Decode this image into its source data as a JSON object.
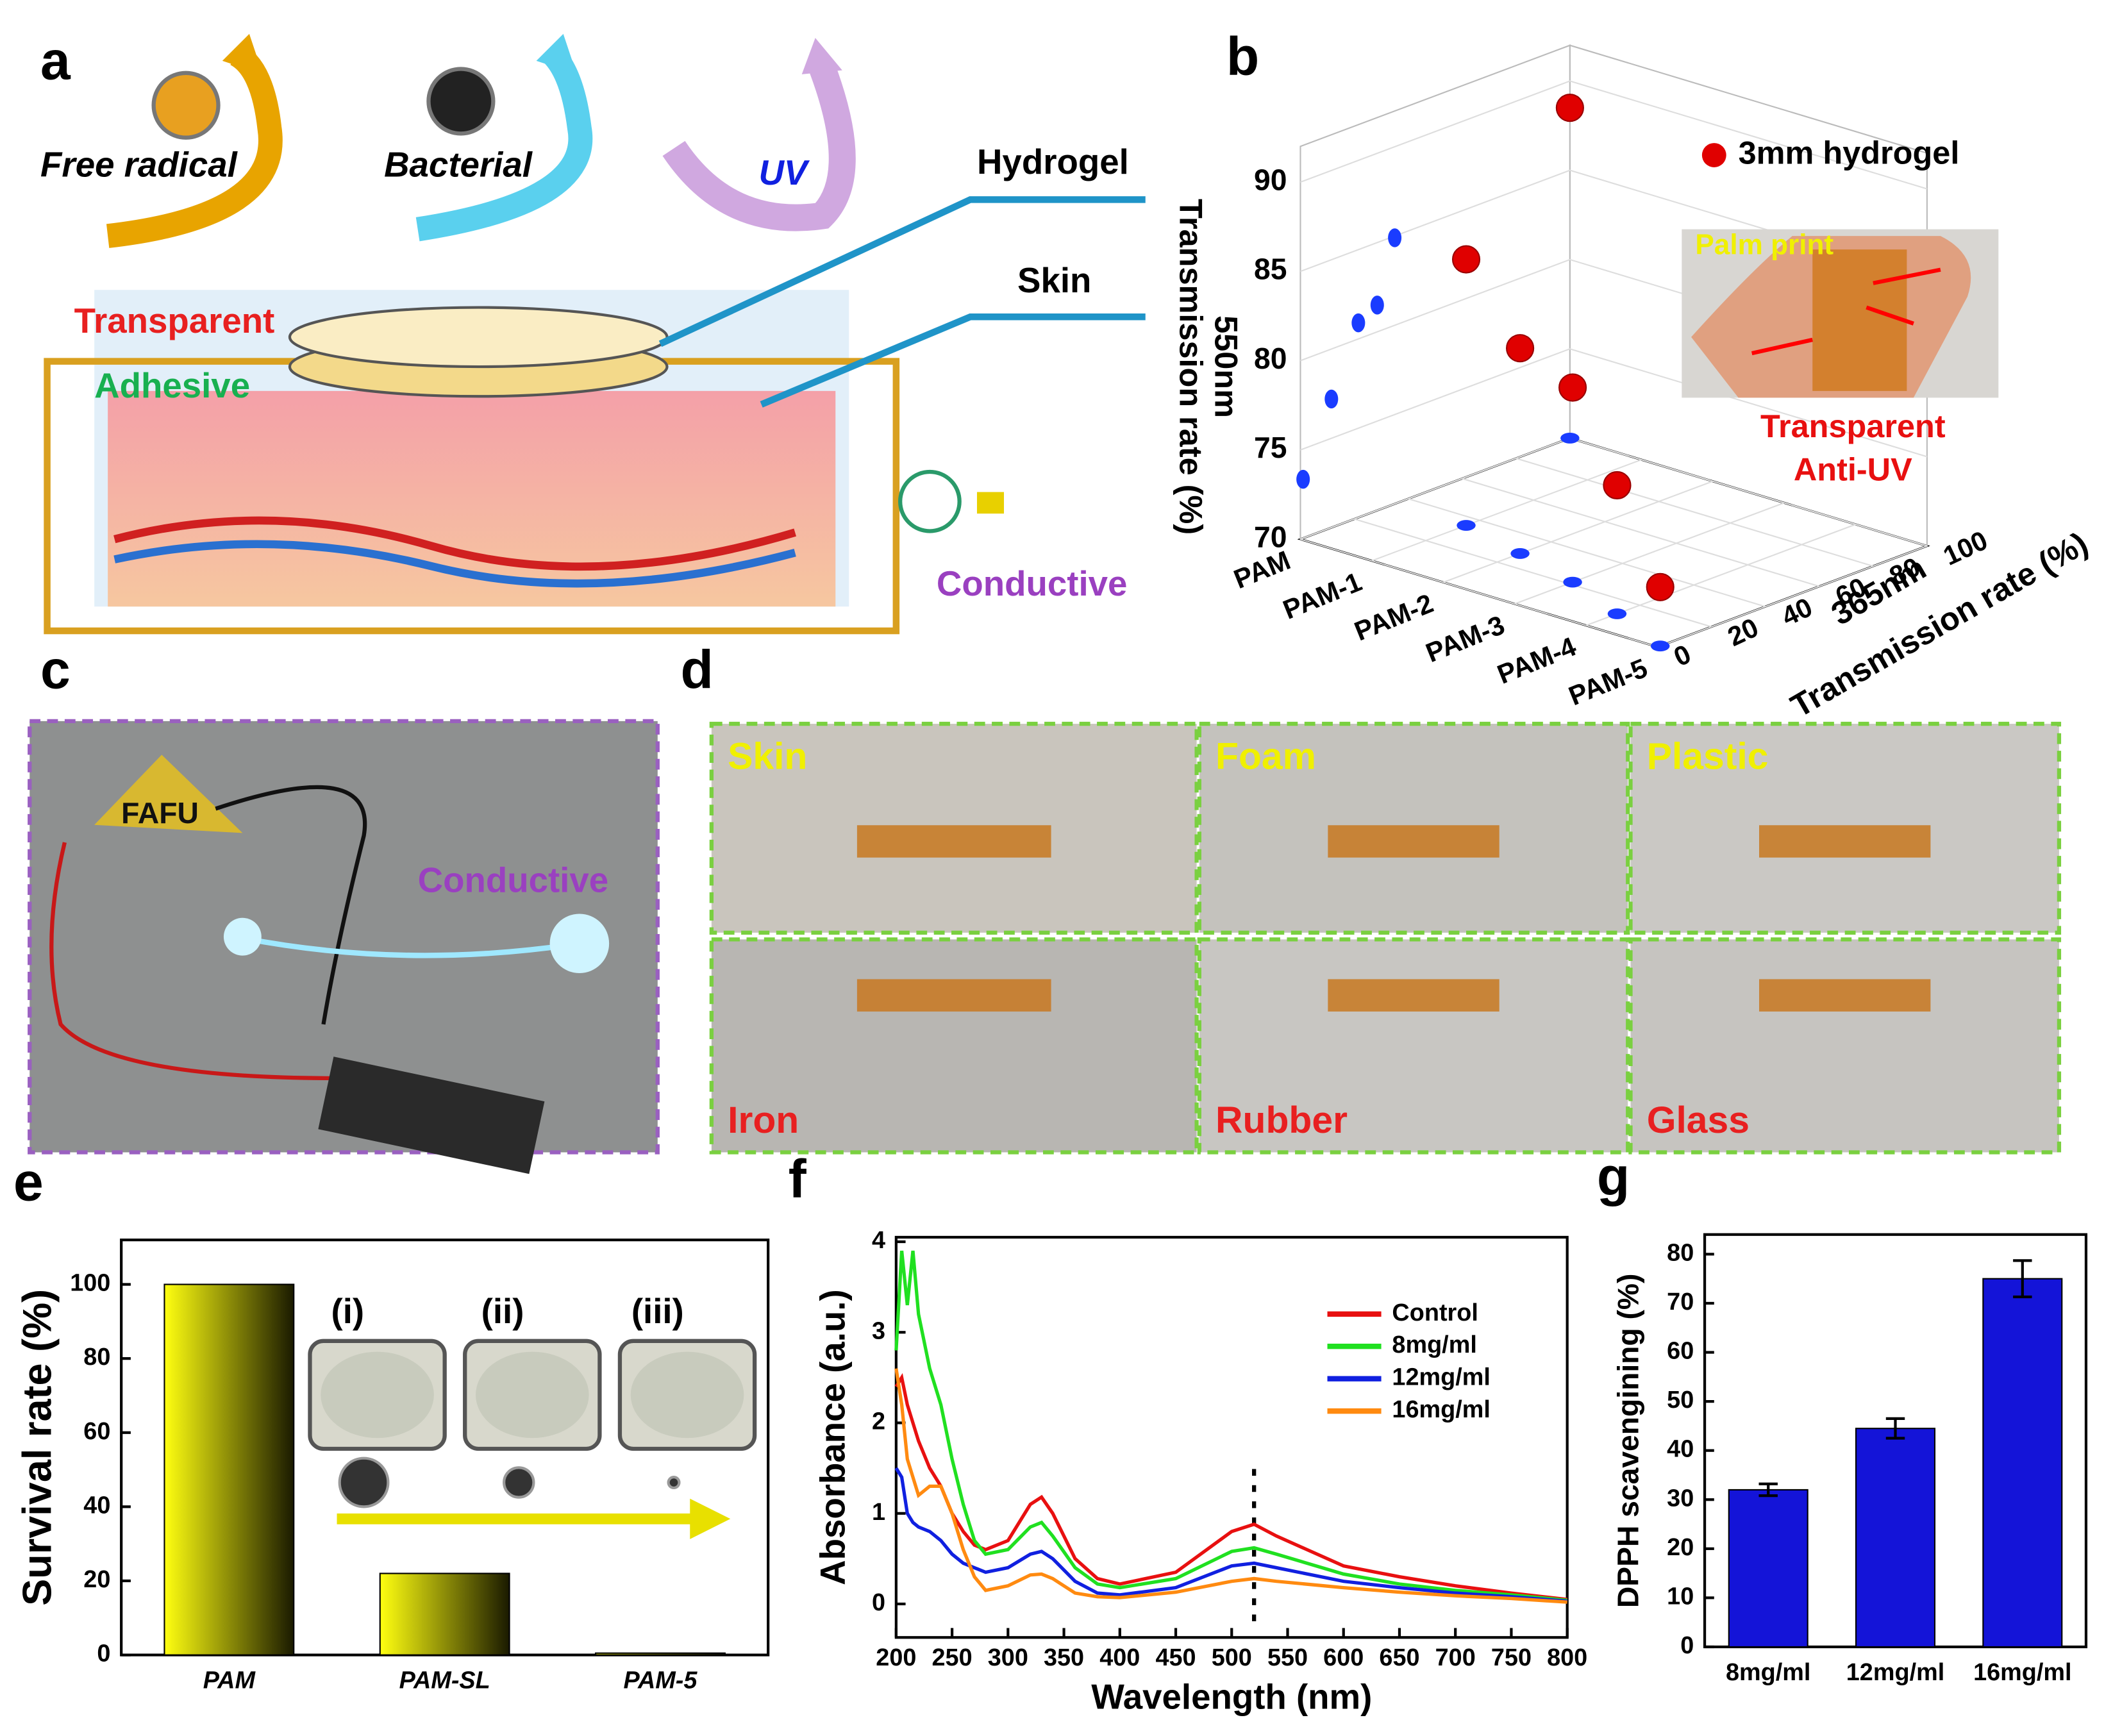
{
  "panel_a": {
    "label": "a",
    "free_radical": "Free radical",
    "bacterial": "Bacterial",
    "uv": "UV",
    "hydrogel": "Hydrogel",
    "skin": "Skin",
    "transparent": "Transparent",
    "adhesive": "Adhesive",
    "conductive": "Conductive"
  },
  "panel_c": {
    "label": "c",
    "conductive": "Conductive",
    "photo_text": "FAFU"
  },
  "panel_d": {
    "label": "d",
    "tiles": [
      "Skin",
      "Foam",
      "Plastic",
      "Iron",
      "Rubber",
      "Glass"
    ]
  },
  "chart_data": [
    {
      "type": "scatter3d",
      "label": "b",
      "categories": [
        "PAM",
        "PAM-1",
        "PAM-2",
        "PAM-3",
        "PAM-4",
        "PAM-5"
      ],
      "series": [
        {
          "name": "3mm hydrogel",
          "color": "#e00000",
          "y": [
            100,
            35,
            28.5,
            21.5,
            11.5,
            1
          ],
          "z": [
            88.5,
            84.9,
            81.5,
            80.9,
            77.2,
            73.3
          ]
        }
      ],
      "projection_color": "#1a3cff",
      "ylim": [
        0,
        100
      ],
      "yticks": [
        0,
        20,
        40,
        60,
        80,
        100
      ],
      "zlim": [
        70,
        92
      ],
      "zticks": [
        70,
        75,
        80,
        85,
        90
      ],
      "ylabel": [
        "365nm",
        "Transmission rate (%)"
      ],
      "zlabel": [
        "550nm",
        "Transmission rate (%)"
      ],
      "inset_texts": [
        "Palm print",
        "Transparent",
        "Anti-UV"
      ]
    },
    {
      "type": "bar",
      "label": "e",
      "categories": [
        "PAM",
        "PAM-SL",
        "PAM-5"
      ],
      "values": [
        100,
        22,
        0.5
      ],
      "gradient": [
        "#ffff10",
        "#1a1a00"
      ],
      "ylim": [
        0,
        112
      ],
      "yticks": [
        0,
        20,
        40,
        60,
        80,
        100
      ],
      "ylabel": "Survival rate (%)",
      "inset_labels": [
        "(i)",
        "(ii)",
        "(iii)"
      ]
    },
    {
      "type": "line",
      "label": "f",
      "x": [
        200,
        205,
        210,
        215,
        220,
        230,
        240,
        250,
        260,
        270,
        280,
        300,
        320,
        330,
        340,
        360,
        380,
        400,
        450,
        500,
        520,
        540,
        600,
        650,
        700,
        750,
        800
      ],
      "series": [
        {
          "name": "Control",
          "color": "#e81010",
          "values": [
            2.4,
            2.5,
            2.2,
            2.0,
            1.8,
            1.5,
            1.3,
            1.0,
            0.8,
            0.65,
            0.6,
            0.7,
            1.1,
            1.18,
            1.0,
            0.5,
            0.28,
            0.22,
            0.35,
            0.8,
            0.88,
            0.75,
            0.42,
            0.3,
            0.2,
            0.12,
            0.05
          ]
        },
        {
          "name": "8mg/ml",
          "color": "#20e020",
          "values": [
            2.8,
            3.9,
            3.3,
            3.9,
            3.2,
            2.6,
            2.2,
            1.6,
            1.1,
            0.7,
            0.55,
            0.6,
            0.85,
            0.9,
            0.75,
            0.4,
            0.22,
            0.18,
            0.28,
            0.58,
            0.62,
            0.55,
            0.33,
            0.22,
            0.15,
            0.1,
            0.04
          ]
        },
        {
          "name": "12mg/ml",
          "color": "#1020e0",
          "values": [
            1.5,
            1.4,
            1.0,
            0.9,
            0.85,
            0.8,
            0.7,
            0.55,
            0.45,
            0.4,
            0.35,
            0.4,
            0.55,
            0.58,
            0.5,
            0.25,
            0.12,
            0.1,
            0.18,
            0.42,
            0.45,
            0.4,
            0.25,
            0.18,
            0.12,
            0.08,
            0.03
          ]
        },
        {
          "name": "16mg/ml",
          "color": "#ff8a10",
          "values": [
            2.6,
            2.2,
            1.6,
            1.4,
            1.2,
            1.3,
            1.3,
            1.0,
            0.6,
            0.3,
            0.15,
            0.2,
            0.32,
            0.33,
            0.28,
            0.12,
            0.08,
            0.07,
            0.13,
            0.25,
            0.28,
            0.25,
            0.18,
            0.13,
            0.09,
            0.06,
            0.02
          ]
        }
      ],
      "xlim": [
        200,
        800
      ],
      "xticks": [
        200,
        250,
        300,
        350,
        400,
        450,
        500,
        550,
        600,
        650,
        700,
        750,
        800
      ],
      "ylim": [
        -0.37,
        4.05
      ],
      "yticks": [
        0,
        1,
        2,
        3,
        4
      ],
      "marker_line_x": 520,
      "xlabel": "Wavelength (nm)",
      "ylabel": "Absorbance (a.u.)"
    },
    {
      "type": "bar",
      "label": "g",
      "categories": [
        "8mg/ml",
        "12mg/ml",
        "16mg/ml"
      ],
      "values": [
        32,
        44.5,
        75
      ],
      "errors": [
        1.2,
        2,
        3.7
      ],
      "color": "#1414d8",
      "ylim": [
        0,
        84
      ],
      "yticks": [
        0,
        10,
        20,
        30,
        40,
        50,
        60,
        70,
        80
      ],
      "ylabel": "DPPH scavengining (%)"
    }
  ]
}
